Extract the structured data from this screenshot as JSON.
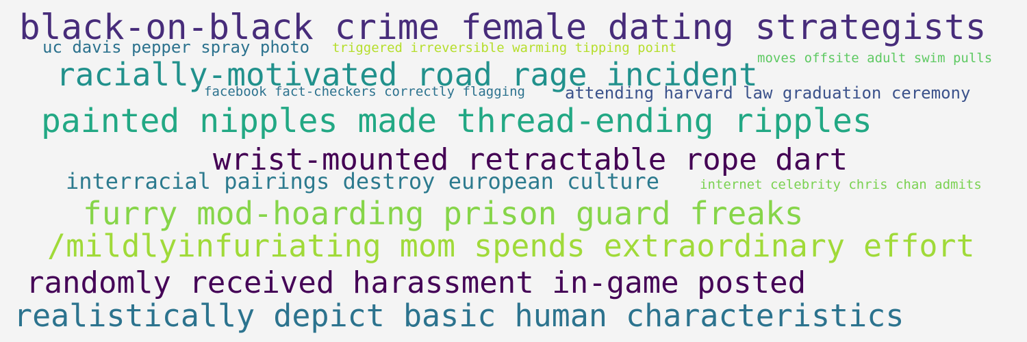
{
  "cloud": {
    "words": [
      {
        "text": "black-on-black crime female dating strategists",
        "color": "#472c7a"
      },
      {
        "text": "uc davis pepper spray photo",
        "color": "#2c728e"
      },
      {
        "text": "triggered irreversible warming tipping point",
        "color": "#b5de2b"
      },
      {
        "text": "moves offsite adult swim pulls",
        "color": "#5ec962"
      },
      {
        "text": "racially-motivated road rage incident",
        "color": "#21918c"
      },
      {
        "text": "facebook fact-checkers correctly flagging",
        "color": "#2c728e"
      },
      {
        "text": "attending harvard law graduation ceremony",
        "color": "#3b528b"
      },
      {
        "text": "painted nipples made thread-ending ripples",
        "color": "#22a884"
      },
      {
        "text": "wrist-mounted retractable rope dart",
        "color": "#440154"
      },
      {
        "text": "interracial pairings destroy european culture",
        "color": "#2c7a8e"
      },
      {
        "text": "internet celebrity chris chan admits",
        "color": "#7ad151"
      },
      {
        "text": "furry mod-hoarding prison guard freaks",
        "color": "#86d549"
      },
      {
        "text": "/mildlyinfuriating mom spends extraordinary effort",
        "color": "#a0da39"
      },
      {
        "text": "randomly received harassment in-game posted",
        "color": "#450457"
      },
      {
        "text": "realistically depict basic human characteristics",
        "color": "#2c738e"
      }
    ]
  }
}
